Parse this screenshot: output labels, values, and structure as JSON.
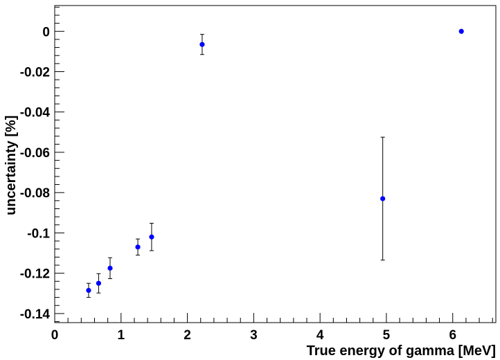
{
  "chart_data": {
    "type": "scatter",
    "title": "",
    "xlabel": "True energy of gamma [MeV]",
    "ylabel": "uncertainty [%]",
    "xlim": [
      0,
      6.65
    ],
    "ylim": [
      -0.1445,
      0.0128
    ],
    "x_ticks": [
      0,
      1,
      2,
      3,
      4,
      5,
      6
    ],
    "y_ticks": [
      0,
      -0.02,
      -0.04,
      -0.06,
      -0.08,
      -0.1,
      -0.12,
      -0.14
    ],
    "x_tick_labels": [
      "0",
      "1",
      "2",
      "3",
      "4",
      "5",
      "6"
    ],
    "y_tick_labels": [
      "0",
      "-0.02",
      "-0.04",
      "-0.06",
      "-0.08",
      "-0.1",
      "-0.12",
      "-0.14"
    ],
    "grid": false,
    "marker_color": "#0000ff",
    "error_bar_color": "#000000",
    "points": [
      {
        "x": 0.511,
        "y": -0.1285,
        "err": 0.0035
      },
      {
        "x": 0.662,
        "y": -0.125,
        "err": 0.0048
      },
      {
        "x": 0.835,
        "y": -0.1175,
        "err": 0.0052
      },
      {
        "x": 1.253,
        "y": -0.107,
        "err": 0.004
      },
      {
        "x": 1.461,
        "y": -0.102,
        "err": 0.0068
      },
      {
        "x": 2.223,
        "y": -0.0065,
        "err": 0.005
      },
      {
        "x": 4.945,
        "y": -0.083,
        "err": 0.0305
      },
      {
        "x": 6.13,
        "y": 0.0,
        "err": 0.0
      }
    ]
  }
}
